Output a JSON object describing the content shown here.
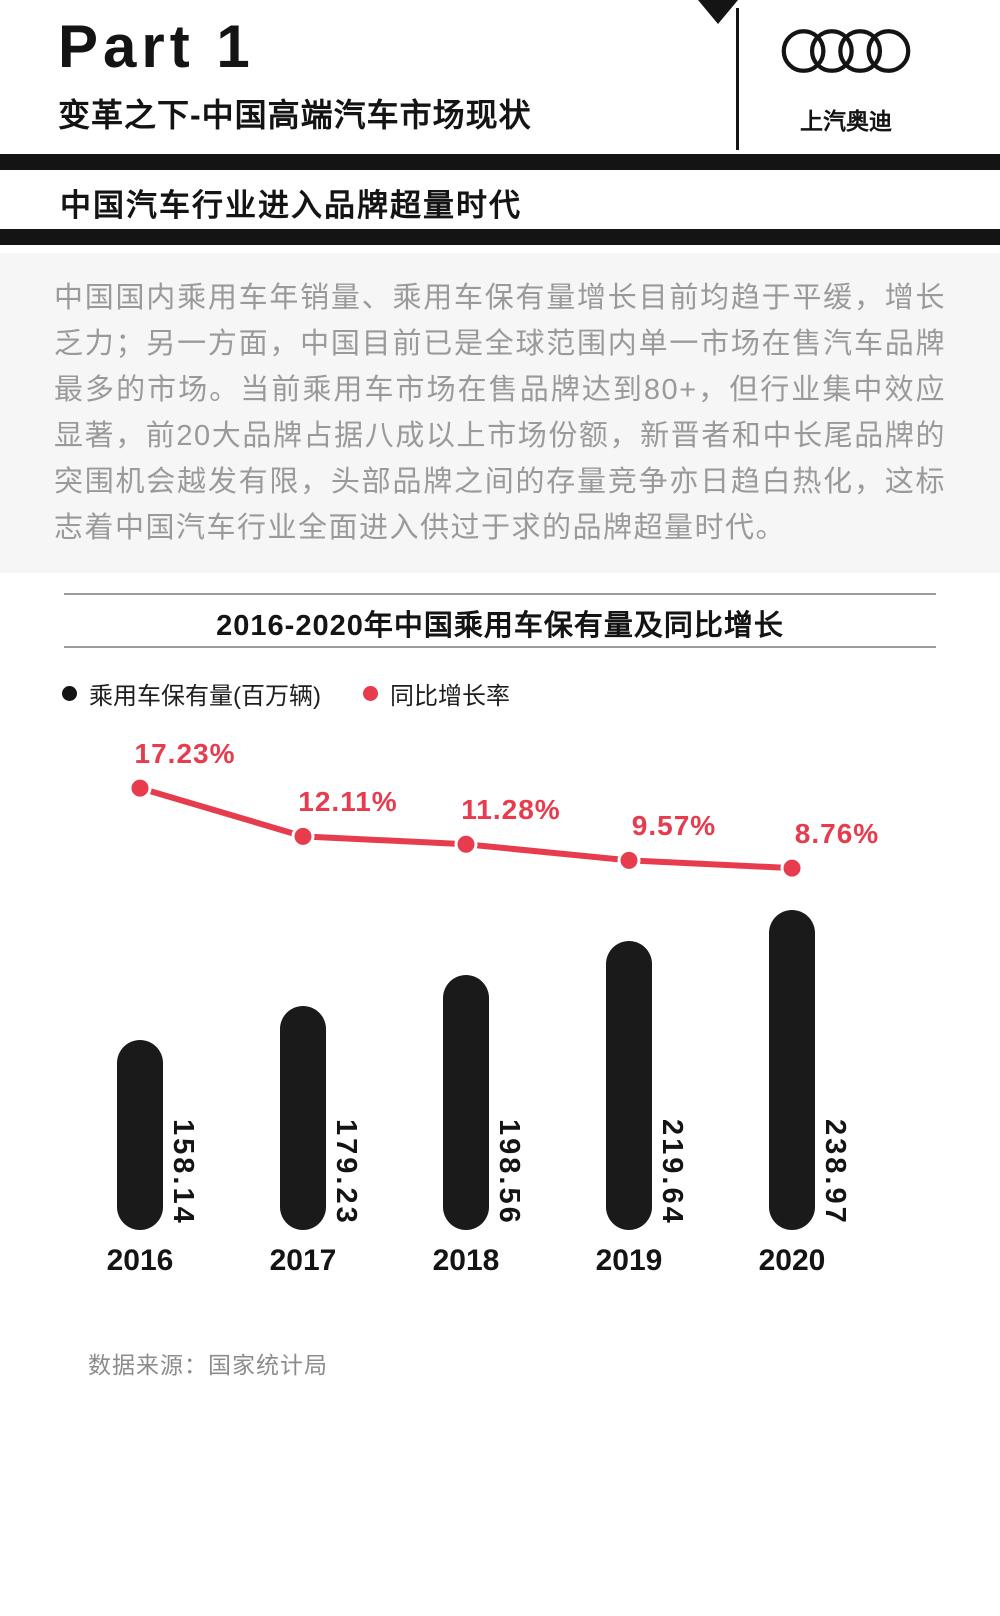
{
  "header": {
    "part_label": "Part 1",
    "subtitle": "变革之下-中国高端汽车市场现状",
    "brand_name": "上汽奥迪",
    "logo_icon": "audi-rings-icon"
  },
  "section": {
    "title": "中国汽车行业进入品牌超量时代"
  },
  "intro": {
    "paragraph": "中国国内乘用车年销量、乘用车保有量增长目前均趋于平缓，增长乏力；另一方面，中国目前已是全球范围内单一市场在售汽车品牌最多的市场。当前乘用车市场在售品牌达到80+，但行业集中效应显著，前20大品牌占据八成以上市场份额，新晋者和中长尾品牌的突围机会越发有限，头部品牌之间的存量竞争亦日趋白热化，这标志着中国汽车行业全面进入供过于求的品牌超量时代。"
  },
  "chart_data": {
    "type": "bar+line",
    "title": "2016-2020年中国乘用车保有量及同比增长",
    "categories": [
      "2016",
      "2017",
      "2018",
      "2019",
      "2020"
    ],
    "series": [
      {
        "name": "乘用车保有量(百万辆)",
        "type": "bar",
        "values": [
          158.14,
          179.23,
          198.56,
          219.64,
          238.97
        ],
        "color": "#1a1a1a"
      },
      {
        "name": "同比增长率",
        "type": "line",
        "values": [
          17.23,
          12.11,
          11.28,
          9.57,
          8.76
        ],
        "labels": [
          "17.23%",
          "12.11%",
          "11.28%",
          "9.57%",
          "8.76%"
        ],
        "color": "#e73b4e"
      }
    ],
    "legend_position": "top-left",
    "grid": false,
    "source": "数据来源：国家统计局"
  },
  "colors": {
    "ink_black": "#141414",
    "bar_black": "#1a1a1a",
    "accent_red": "#e73b4e",
    "muted_text": "#9a9a9a",
    "intro_bg": "#f6f6f6"
  }
}
